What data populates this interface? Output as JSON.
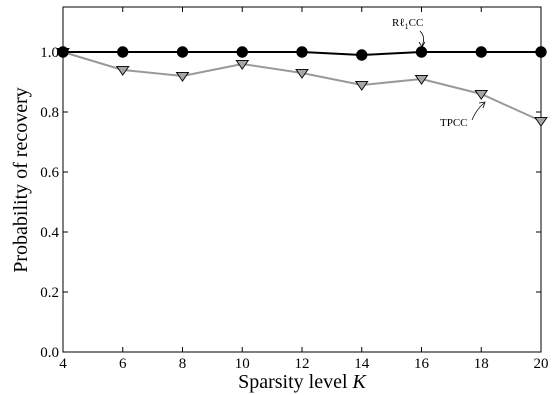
{
  "chart_data": {
    "type": "line",
    "x": [
      4,
      6,
      8,
      10,
      12,
      14,
      16,
      18,
      20
    ],
    "xlabel_prefix": "Sparsity level ",
    "xlabel_var": "K",
    "ylabel": "Probability of recovery",
    "xlim": [
      4,
      20
    ],
    "ylim": [
      0.0,
      1.15
    ],
    "xticks": [
      "4",
      "6",
      "8",
      "10",
      "12",
      "14",
      "16",
      "18",
      "20"
    ],
    "yticks": [
      "0.0",
      "0.2",
      "0.4",
      "0.6",
      "0.8",
      "1.0"
    ],
    "grid": false,
    "series": [
      {
        "name_main": "Rℓ",
        "name_sub": "1",
        "name_tail": "CC",
        "marker": "circle",
        "color": "#000000",
        "values": [
          1.0,
          1.0,
          1.0,
          1.0,
          1.0,
          0.99,
          1.0,
          1.0,
          1.0
        ]
      },
      {
        "name_main": "TPCC",
        "marker": "triangle-down",
        "color": "#999999",
        "values": [
          1.0,
          0.94,
          0.92,
          0.96,
          0.93,
          0.89,
          0.91,
          0.86,
          0.77
        ]
      }
    ]
  }
}
